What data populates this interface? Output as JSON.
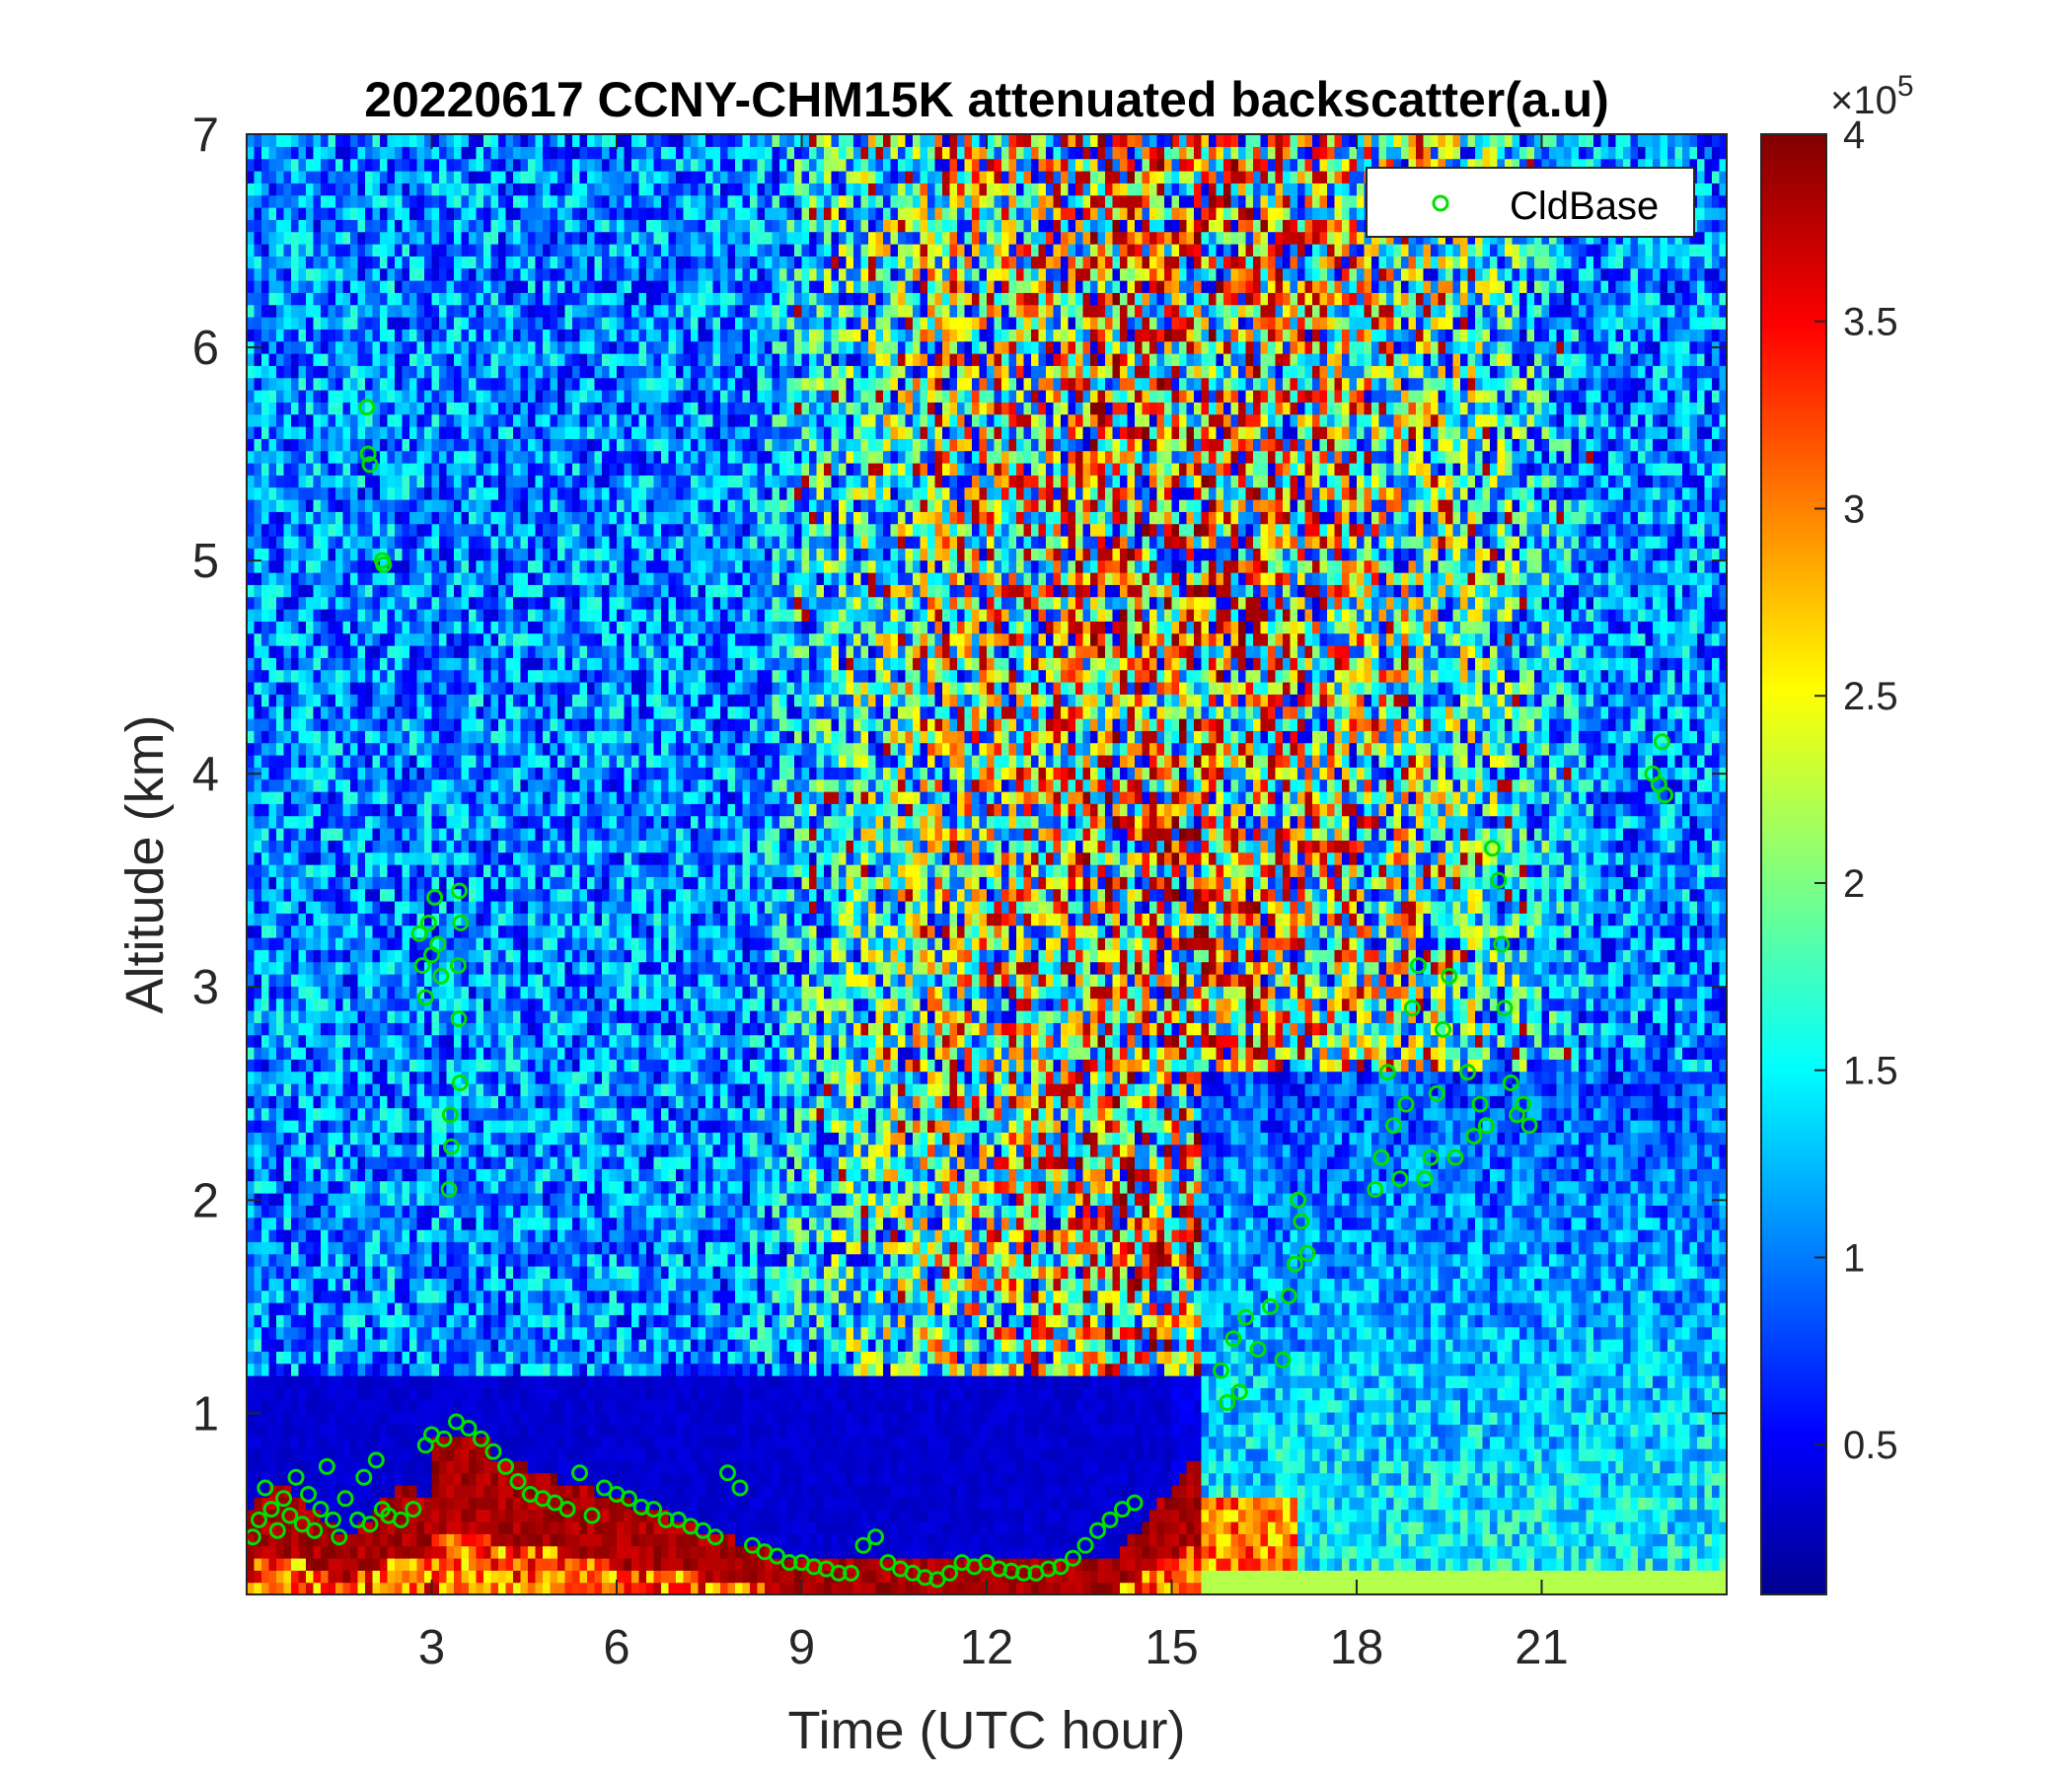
{
  "chart_data": {
    "type": "heatmap",
    "title": "20220617 CCNY-CHM15K attenuated backscatter(a.u)",
    "xlabel": "Time (UTC hour)",
    "ylabel": "Altitude (km)",
    "xlim": [
      0,
      24
    ],
    "ylim": [
      0.15,
      7
    ],
    "xticks": [
      3,
      6,
      9,
      12,
      15,
      18,
      21
    ],
    "yticks": [
      1,
      2,
      3,
      4,
      5,
      6,
      7
    ],
    "colorbar": {
      "colormap": "jet",
      "range": [
        0.1,
        4.0
      ],
      "ticks": [
        0.5,
        1,
        1.5,
        2,
        2.5,
        3,
        3.5,
        4
      ],
      "exponent_label": "×10",
      "exponent_power": "5"
    },
    "legend": {
      "entries": [
        "CldBase"
      ],
      "placement": "top-right"
    },
    "series": [
      {
        "name": "CldBase",
        "marker": "circle",
        "color": "#00e000",
        "points": [
          [
            0.1,
            0.42
          ],
          [
            0.2,
            0.5
          ],
          [
            0.3,
            0.65
          ],
          [
            0.4,
            0.55
          ],
          [
            0.5,
            0.45
          ],
          [
            0.6,
            0.6
          ],
          [
            0.7,
            0.52
          ],
          [
            0.8,
            0.7
          ],
          [
            0.9,
            0.48
          ],
          [
            1.0,
            0.62
          ],
          [
            1.1,
            0.45
          ],
          [
            1.2,
            0.55
          ],
          [
            1.3,
            0.75
          ],
          [
            1.4,
            0.5
          ],
          [
            1.5,
            0.42
          ],
          [
            1.6,
            0.6
          ],
          [
            1.8,
            0.5
          ],
          [
            1.9,
            0.7
          ],
          [
            2.0,
            0.48
          ],
          [
            2.1,
            0.78
          ],
          [
            2.2,
            0.55
          ],
          [
            2.3,
            0.52
          ],
          [
            2.5,
            0.5
          ],
          [
            2.7,
            0.55
          ],
          [
            2.9,
            0.85
          ],
          [
            3.0,
            0.9
          ],
          [
            3.2,
            0.88
          ],
          [
            3.4,
            0.96
          ],
          [
            3.6,
            0.93
          ],
          [
            3.8,
            0.88
          ],
          [
            4.0,
            0.82
          ],
          [
            4.2,
            0.75
          ],
          [
            4.4,
            0.68
          ],
          [
            4.6,
            0.62
          ],
          [
            4.8,
            0.6
          ],
          [
            5.0,
            0.58
          ],
          [
            5.2,
            0.55
          ],
          [
            5.4,
            0.72
          ],
          [
            5.6,
            0.52
          ],
          [
            5.8,
            0.65
          ],
          [
            6.0,
            0.62
          ],
          [
            6.2,
            0.6
          ],
          [
            6.4,
            0.56
          ],
          [
            6.6,
            0.55
          ],
          [
            6.8,
            0.5
          ],
          [
            7.0,
            0.5
          ],
          [
            7.2,
            0.47
          ],
          [
            7.4,
            0.45
          ],
          [
            7.6,
            0.42
          ],
          [
            7.8,
            0.72
          ],
          [
            8.0,
            0.65
          ],
          [
            8.2,
            0.38
          ],
          [
            8.4,
            0.35
          ],
          [
            8.6,
            0.33
          ],
          [
            8.8,
            0.3
          ],
          [
            9.0,
            0.3
          ],
          [
            9.2,
            0.28
          ],
          [
            9.4,
            0.27
          ],
          [
            9.6,
            0.25
          ],
          [
            9.8,
            0.25
          ],
          [
            10.0,
            0.38
          ],
          [
            10.2,
            0.42
          ],
          [
            10.4,
            0.3
          ],
          [
            10.6,
            0.27
          ],
          [
            10.8,
            0.25
          ],
          [
            11.0,
            0.23
          ],
          [
            11.2,
            0.22
          ],
          [
            11.4,
            0.25
          ],
          [
            11.6,
            0.3
          ],
          [
            11.8,
            0.28
          ],
          [
            12.0,
            0.3
          ],
          [
            12.2,
            0.27
          ],
          [
            12.4,
            0.26
          ],
          [
            12.6,
            0.25
          ],
          [
            12.8,
            0.25
          ],
          [
            13.0,
            0.27
          ],
          [
            13.2,
            0.28
          ],
          [
            13.4,
            0.32
          ],
          [
            13.6,
            0.38
          ],
          [
            13.8,
            0.45
          ],
          [
            14.0,
            0.5
          ],
          [
            14.2,
            0.55
          ],
          [
            14.4,
            0.58
          ],
          [
            1.95,
            5.72
          ],
          [
            1.97,
            5.5
          ],
          [
            2.0,
            5.45
          ],
          [
            2.2,
            5.0
          ],
          [
            2.22,
            4.98
          ],
          [
            2.8,
            3.25
          ],
          [
            2.85,
            3.1
          ],
          [
            2.9,
            2.95
          ],
          [
            2.95,
            3.3
          ],
          [
            3.0,
            3.15
          ],
          [
            3.05,
            3.42
          ],
          [
            3.1,
            3.2
          ],
          [
            3.15,
            3.05
          ],
          [
            3.3,
            2.4
          ],
          [
            3.32,
            2.25
          ],
          [
            3.28,
            2.05
          ],
          [
            3.45,
            3.45
          ],
          [
            3.47,
            3.3
          ],
          [
            3.43,
            3.1
          ],
          [
            3.44,
            2.85
          ],
          [
            3.46,
            2.55
          ],
          [
            15.8,
            1.2
          ],
          [
            15.9,
            1.05
          ],
          [
            16.0,
            1.35
          ],
          [
            16.1,
            1.1
          ],
          [
            16.2,
            1.45
          ],
          [
            16.4,
            1.3
          ],
          [
            16.6,
            1.5
          ],
          [
            16.8,
            1.25
          ],
          [
            16.9,
            1.55
          ],
          [
            17.0,
            1.7
          ],
          [
            17.05,
            2.0
          ],
          [
            17.1,
            1.9
          ],
          [
            17.2,
            1.75
          ],
          [
            18.3,
            2.05
          ],
          [
            18.4,
            2.2
          ],
          [
            18.5,
            2.6
          ],
          [
            18.6,
            2.35
          ],
          [
            18.7,
            2.1
          ],
          [
            18.8,
            2.45
          ],
          [
            18.9,
            2.9
          ],
          [
            19.0,
            3.1
          ],
          [
            19.1,
            2.1
          ],
          [
            19.2,
            2.2
          ],
          [
            19.3,
            2.5
          ],
          [
            19.4,
            2.8
          ],
          [
            19.5,
            3.05
          ],
          [
            19.6,
            2.2
          ],
          [
            19.8,
            2.6
          ],
          [
            19.9,
            2.3
          ],
          [
            20.0,
            2.45
          ],
          [
            20.1,
            2.35
          ],
          [
            20.2,
            3.65
          ],
          [
            20.3,
            3.5
          ],
          [
            20.35,
            3.2
          ],
          [
            20.4,
            2.9
          ],
          [
            20.5,
            2.55
          ],
          [
            20.6,
            2.4
          ],
          [
            20.7,
            2.45
          ],
          [
            20.8,
            2.35
          ],
          [
            22.8,
            4.0
          ],
          [
            22.9,
            3.95
          ],
          [
            22.95,
            4.15
          ],
          [
            23.0,
            3.9
          ]
        ]
      }
    ]
  }
}
